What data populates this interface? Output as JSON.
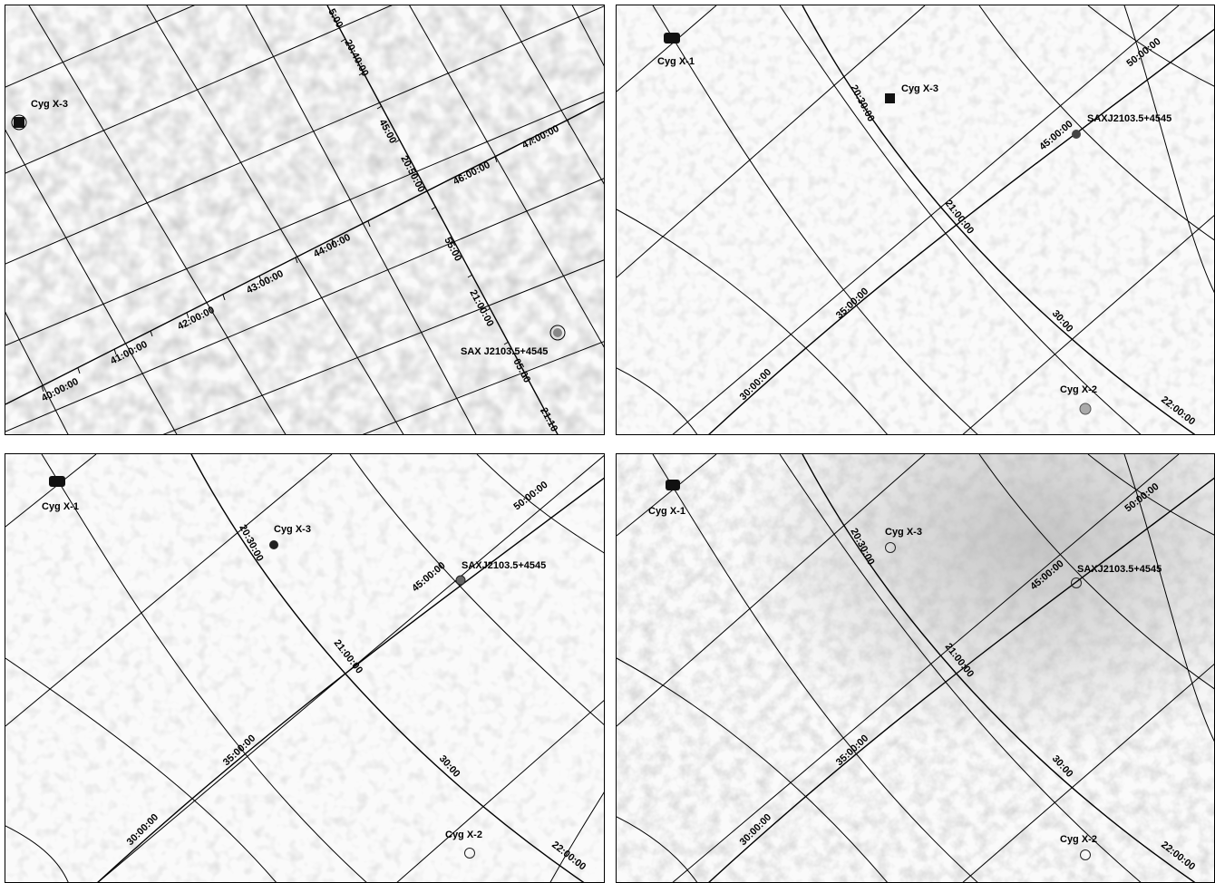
{
  "panels": [
    {
      "sources": [
        {
          "label": "Cyg X-3"
        },
        {
          "label": "SAX J2103.5+4545"
        }
      ],
      "ra_labels": [
        "5:00",
        "20:40:00",
        "45:00",
        "20:50:00",
        "55:00",
        "21:00:00",
        "05:00",
        "21:10"
      ],
      "dec_labels": [
        "40:00:00",
        "41:00:00",
        "42:00:00",
        "43:00:00",
        "44:00:00",
        "46:00:00",
        "47:00:00"
      ]
    },
    {
      "sources": [
        {
          "label": "Cyg X-1"
        },
        {
          "label": "Cyg X-3"
        },
        {
          "label": "SAXJ2103.5+4545"
        },
        {
          "label": "Cyg X-2"
        }
      ],
      "ra_labels": [
        "20:30:00",
        "21:00:00",
        "30:00",
        "22:00:00"
      ],
      "dec_labels": [
        "30:00:00",
        "35:00:00",
        "45:00:00",
        "50:00:00"
      ]
    },
    {
      "sources": [
        {
          "label": "Cyg X-1"
        },
        {
          "label": "Cyg X-3"
        },
        {
          "label": "SAXJ2103.5+4545"
        },
        {
          "label": "Cyg X-2"
        }
      ],
      "ra_labels": [
        "20:30:00",
        "21:00:00",
        "30:00",
        "22:00:00"
      ],
      "dec_labels": [
        "30:00:00",
        "35:00:00",
        "45:00:00",
        "50:00:00"
      ]
    },
    {
      "sources": [
        {
          "label": "Cyg X-1"
        },
        {
          "label": "Cyg X-3"
        },
        {
          "label": "SAXJ2103.5+4545"
        },
        {
          "label": "Cyg X-2"
        }
      ],
      "ra_labels": [
        "20:30:00",
        "21:00:00",
        "30:00",
        "22:00:00"
      ],
      "dec_labels": [
        "30:00:00",
        "35:00:00",
        "45:00:00",
        "50:00:00"
      ]
    }
  ]
}
